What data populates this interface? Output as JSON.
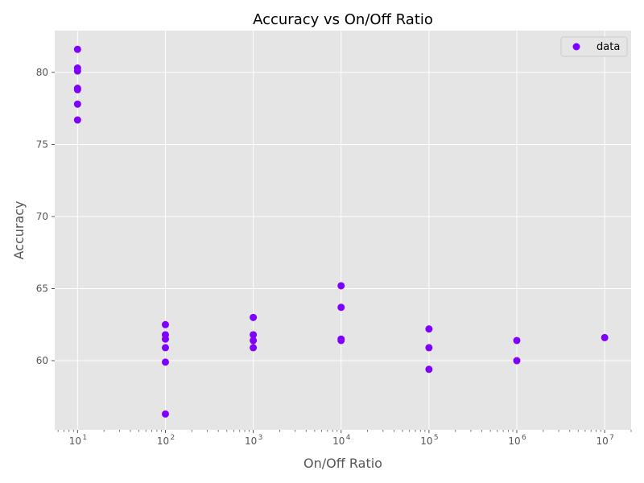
{
  "chart_data": {
    "type": "scatter",
    "title": "Accuracy vs On/Off Ratio",
    "xlabel": "On/Off Ratio",
    "ylabel": "Accuracy",
    "xscale": "log",
    "xlim": [
      5.5,
      20000000
    ],
    "ylim": [
      55.2,
      82.9
    ],
    "grid": true,
    "legend": "top-right",
    "x_tick_values": [
      10,
      100,
      1000,
      10000,
      100000,
      1000000,
      10000000
    ],
    "x_tick_exponents": [
      "1",
      "2",
      "3",
      "4",
      "5",
      "6",
      "7"
    ],
    "y_ticks": [
      60,
      65,
      70,
      75,
      80
    ],
    "colors": {
      "marker": "#7f00ff",
      "background": "#e5e5e5",
      "grid": "#ffffff",
      "text": "#555555"
    },
    "series": [
      {
        "name": "data",
        "points": [
          {
            "x": 10,
            "y": 81.6
          },
          {
            "x": 10,
            "y": 80.3
          },
          {
            "x": 10,
            "y": 80.1
          },
          {
            "x": 10,
            "y": 78.9
          },
          {
            "x": 10,
            "y": 78.8
          },
          {
            "x": 10,
            "y": 77.8
          },
          {
            "x": 10,
            "y": 76.7
          },
          {
            "x": 100,
            "y": 62.5
          },
          {
            "x": 100,
            "y": 61.8
          },
          {
            "x": 100,
            "y": 61.5
          },
          {
            "x": 100,
            "y": 60.9
          },
          {
            "x": 100,
            "y": 59.9
          },
          {
            "x": 100,
            "y": 56.3
          },
          {
            "x": 1000,
            "y": 63.0
          },
          {
            "x": 1000,
            "y": 61.8
          },
          {
            "x": 1000,
            "y": 61.4
          },
          {
            "x": 1000,
            "y": 60.9
          },
          {
            "x": 10000,
            "y": 65.2
          },
          {
            "x": 10000,
            "y": 63.7
          },
          {
            "x": 10000,
            "y": 61.5
          },
          {
            "x": 10000,
            "y": 61.4
          },
          {
            "x": 100000,
            "y": 62.2
          },
          {
            "x": 100000,
            "y": 60.9
          },
          {
            "x": 100000,
            "y": 59.4
          },
          {
            "x": 1000000,
            "y": 61.4
          },
          {
            "x": 1000000,
            "y": 60.0
          },
          {
            "x": 10000000,
            "y": 61.6
          }
        ]
      }
    ]
  }
}
